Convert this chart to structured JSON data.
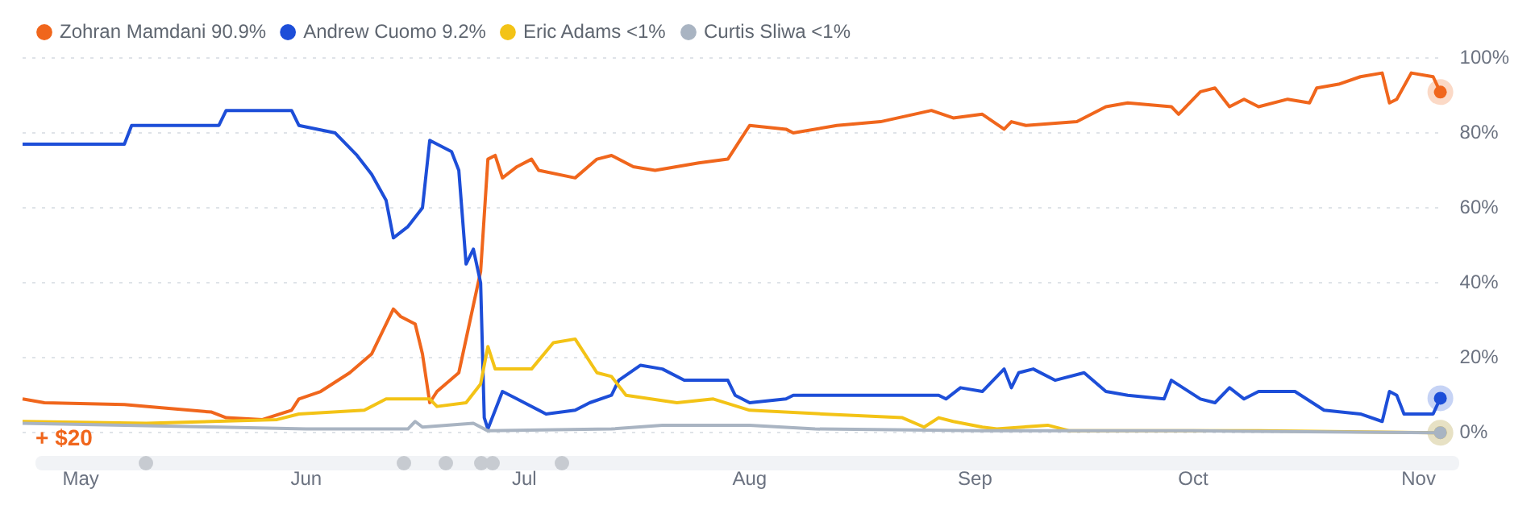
{
  "chart_data": {
    "type": "line",
    "legend": "top left",
    "grid": "y",
    "xlim": [
      "--04-23",
      "--11-04"
    ],
    "xticks": [
      {
        "value": "--05-01",
        "label": "May"
      },
      {
        "value": "--06-01",
        "label": "Jun"
      },
      {
        "value": "--07-01",
        "label": "Jul"
      },
      {
        "value": "--08-01",
        "label": "Aug"
      },
      {
        "value": "--09-01",
        "label": "Sep"
      },
      {
        "value": "--10-01",
        "label": "Oct"
      },
      {
        "value": "--11-01",
        "label": "Nov"
      }
    ],
    "ylim": [
      0,
      100
    ],
    "yticks": [
      {
        "value": 0,
        "label": "0%"
      },
      {
        "value": 20,
        "label": "20%"
      },
      {
        "value": 40,
        "label": "40%"
      },
      {
        "value": 60,
        "label": "60%"
      },
      {
        "value": 80,
        "label": "80%"
      },
      {
        "value": 100,
        "label": "100%"
      }
    ],
    "annotations": [
      "+ $20"
    ],
    "series": [
      {
        "name": "Zohran Mamdani 90.9%",
        "color": "#f0661c",
        "x": [
          "--04-23",
          "--04-26",
          "--05-07",
          "--05-19",
          "--05-21",
          "--05-26",
          "--05-30",
          "--05-31",
          "--06-03",
          "--06-07",
          "--06-10",
          "--06-13",
          "--06-14",
          "--06-16",
          "--06-17",
          "--06-18",
          "--06-19",
          "--06-22",
          "--06-24",
          "--06-25",
          "--06-26",
          "--06-27",
          "--06-28",
          "--06-30",
          "--07-02",
          "--07-03",
          "--07-08",
          "--07-11",
          "--07-13",
          "--07-16",
          "--07-19",
          "--07-25",
          "--07-29",
          "--07-31",
          "--08-01",
          "--08-06",
          "--08-07",
          "--08-13",
          "--08-19",
          "--08-26",
          "--08-29",
          "--09-02",
          "--09-05",
          "--09-06",
          "--09-08",
          "--09-15",
          "--09-17",
          "--09-19",
          "--09-22",
          "--09-28",
          "--09-29",
          "--10-02",
          "--10-04",
          "--10-06",
          "--10-08",
          "--10-10",
          "--10-14",
          "--10-17",
          "--10-18",
          "--10-21",
          "--10-24",
          "--10-27",
          "--10-28",
          "--10-29",
          "--10-31",
          "--11-03",
          "--11-04"
        ],
        "values": [
          9,
          8,
          7.5,
          5.5,
          4,
          3.5,
          6,
          9,
          11,
          16,
          21,
          33,
          31,
          29,
          21,
          8,
          11,
          16,
          34,
          43,
          73,
          74,
          68,
          71,
          73,
          70,
          68,
          73,
          74,
          71,
          70,
          72,
          73,
          79,
          82,
          81,
          80,
          82,
          83,
          86,
          84,
          85,
          81,
          83,
          82,
          83,
          85,
          87,
          88,
          87,
          85,
          91,
          92,
          87,
          89,
          87,
          89,
          88,
          92,
          93,
          95,
          96,
          88,
          89,
          96,
          95,
          90.9
        ]
      },
      {
        "name": "Andrew Cuomo 9.2%",
        "color": "#1d4ed8",
        "x": [
          "--04-23",
          "--05-07",
          "--05-08",
          "--05-20",
          "--05-21",
          "--05-30",
          "--05-31",
          "--06-05",
          "--06-08",
          "--06-10",
          "--06-12",
          "--06-13",
          "--06-15",
          "--06-17",
          "--06-18",
          "--06-21",
          "--06-22",
          "--06-23",
          "--06-24",
          "--06-25",
          "--06-25T12:00",
          "--06-26",
          "--06-28",
          "--06-30",
          "--07-04",
          "--07-08",
          "--07-10",
          "--07-13",
          "--07-14",
          "--07-17",
          "--07-20",
          "--07-23",
          "--07-29",
          "--07-30",
          "--08-01",
          "--08-06",
          "--08-07",
          "--08-14",
          "--08-27",
          "--08-28",
          "--08-30",
          "--09-02",
          "--09-05",
          "--09-06",
          "--09-07",
          "--09-09",
          "--09-12",
          "--09-16",
          "--09-19",
          "--09-22",
          "--09-27",
          "--09-28",
          "--10-02",
          "--10-04",
          "--10-06",
          "--10-08",
          "--10-10",
          "--10-15",
          "--10-19",
          "--10-24",
          "--10-27",
          "--10-28",
          "--10-29",
          "--10-30",
          "--11-03",
          "--11-04"
        ],
        "values": [
          77,
          77,
          82,
          82,
          86,
          86,
          82,
          80,
          74,
          69,
          62,
          52,
          55,
          60,
          78,
          75,
          70,
          45,
          49,
          40,
          4,
          1,
          11,
          9,
          5,
          6,
          8,
          10,
          14,
          18,
          17,
          14,
          14,
          10,
          8,
          9,
          10,
          10,
          10,
          9,
          12,
          11,
          17,
          12,
          16,
          17,
          14,
          16,
          11,
          10,
          9,
          14,
          9,
          8,
          12,
          9,
          11,
          11,
          6,
          5,
          3,
          11,
          10,
          5,
          5,
          9.2
        ]
      },
      {
        "name": "Eric Adams <1%",
        "color": "#f3c316",
        "x": [
          "--04-23",
          "--05-10",
          "--05-28",
          "--05-31",
          "--06-09",
          "--06-12",
          "--06-18",
          "--06-19",
          "--06-23",
          "--06-25",
          "--06-26",
          "--06-27",
          "--07-02",
          "--07-05",
          "--07-08",
          "--07-11",
          "--07-13",
          "--07-15",
          "--07-22",
          "--07-27",
          "--08-01",
          "--08-11",
          "--08-22",
          "--08-25",
          "--08-27",
          "--08-29",
          "--09-02",
          "--09-04",
          "--09-11",
          "--09-14",
          "--10-10",
          "--11-04"
        ],
        "values": [
          3,
          2.5,
          3.5,
          5,
          6,
          9,
          9,
          7,
          8,
          13,
          23,
          17,
          17,
          24,
          25,
          16,
          15,
          10,
          8,
          9,
          6,
          5,
          4,
          1.5,
          4,
          3,
          1.5,
          1,
          2,
          0.5,
          0.5,
          0
        ]
      },
      {
        "name": "Curtis Sliwa <1%",
        "color": "#a9b4c2",
        "x": [
          "--04-23",
          "--05-20",
          "--06-01",
          "--06-15",
          "--06-16",
          "--06-17",
          "--06-24",
          "--06-26",
          "--07-13",
          "--07-20",
          "--08-01",
          "--08-10",
          "--09-02",
          "--10-01",
          "--11-04"
        ],
        "values": [
          2.5,
          1.5,
          1,
          1,
          3,
          1.5,
          2.5,
          0.5,
          1,
          2,
          2,
          1,
          0.5,
          0.5,
          0
        ]
      }
    ]
  }
}
